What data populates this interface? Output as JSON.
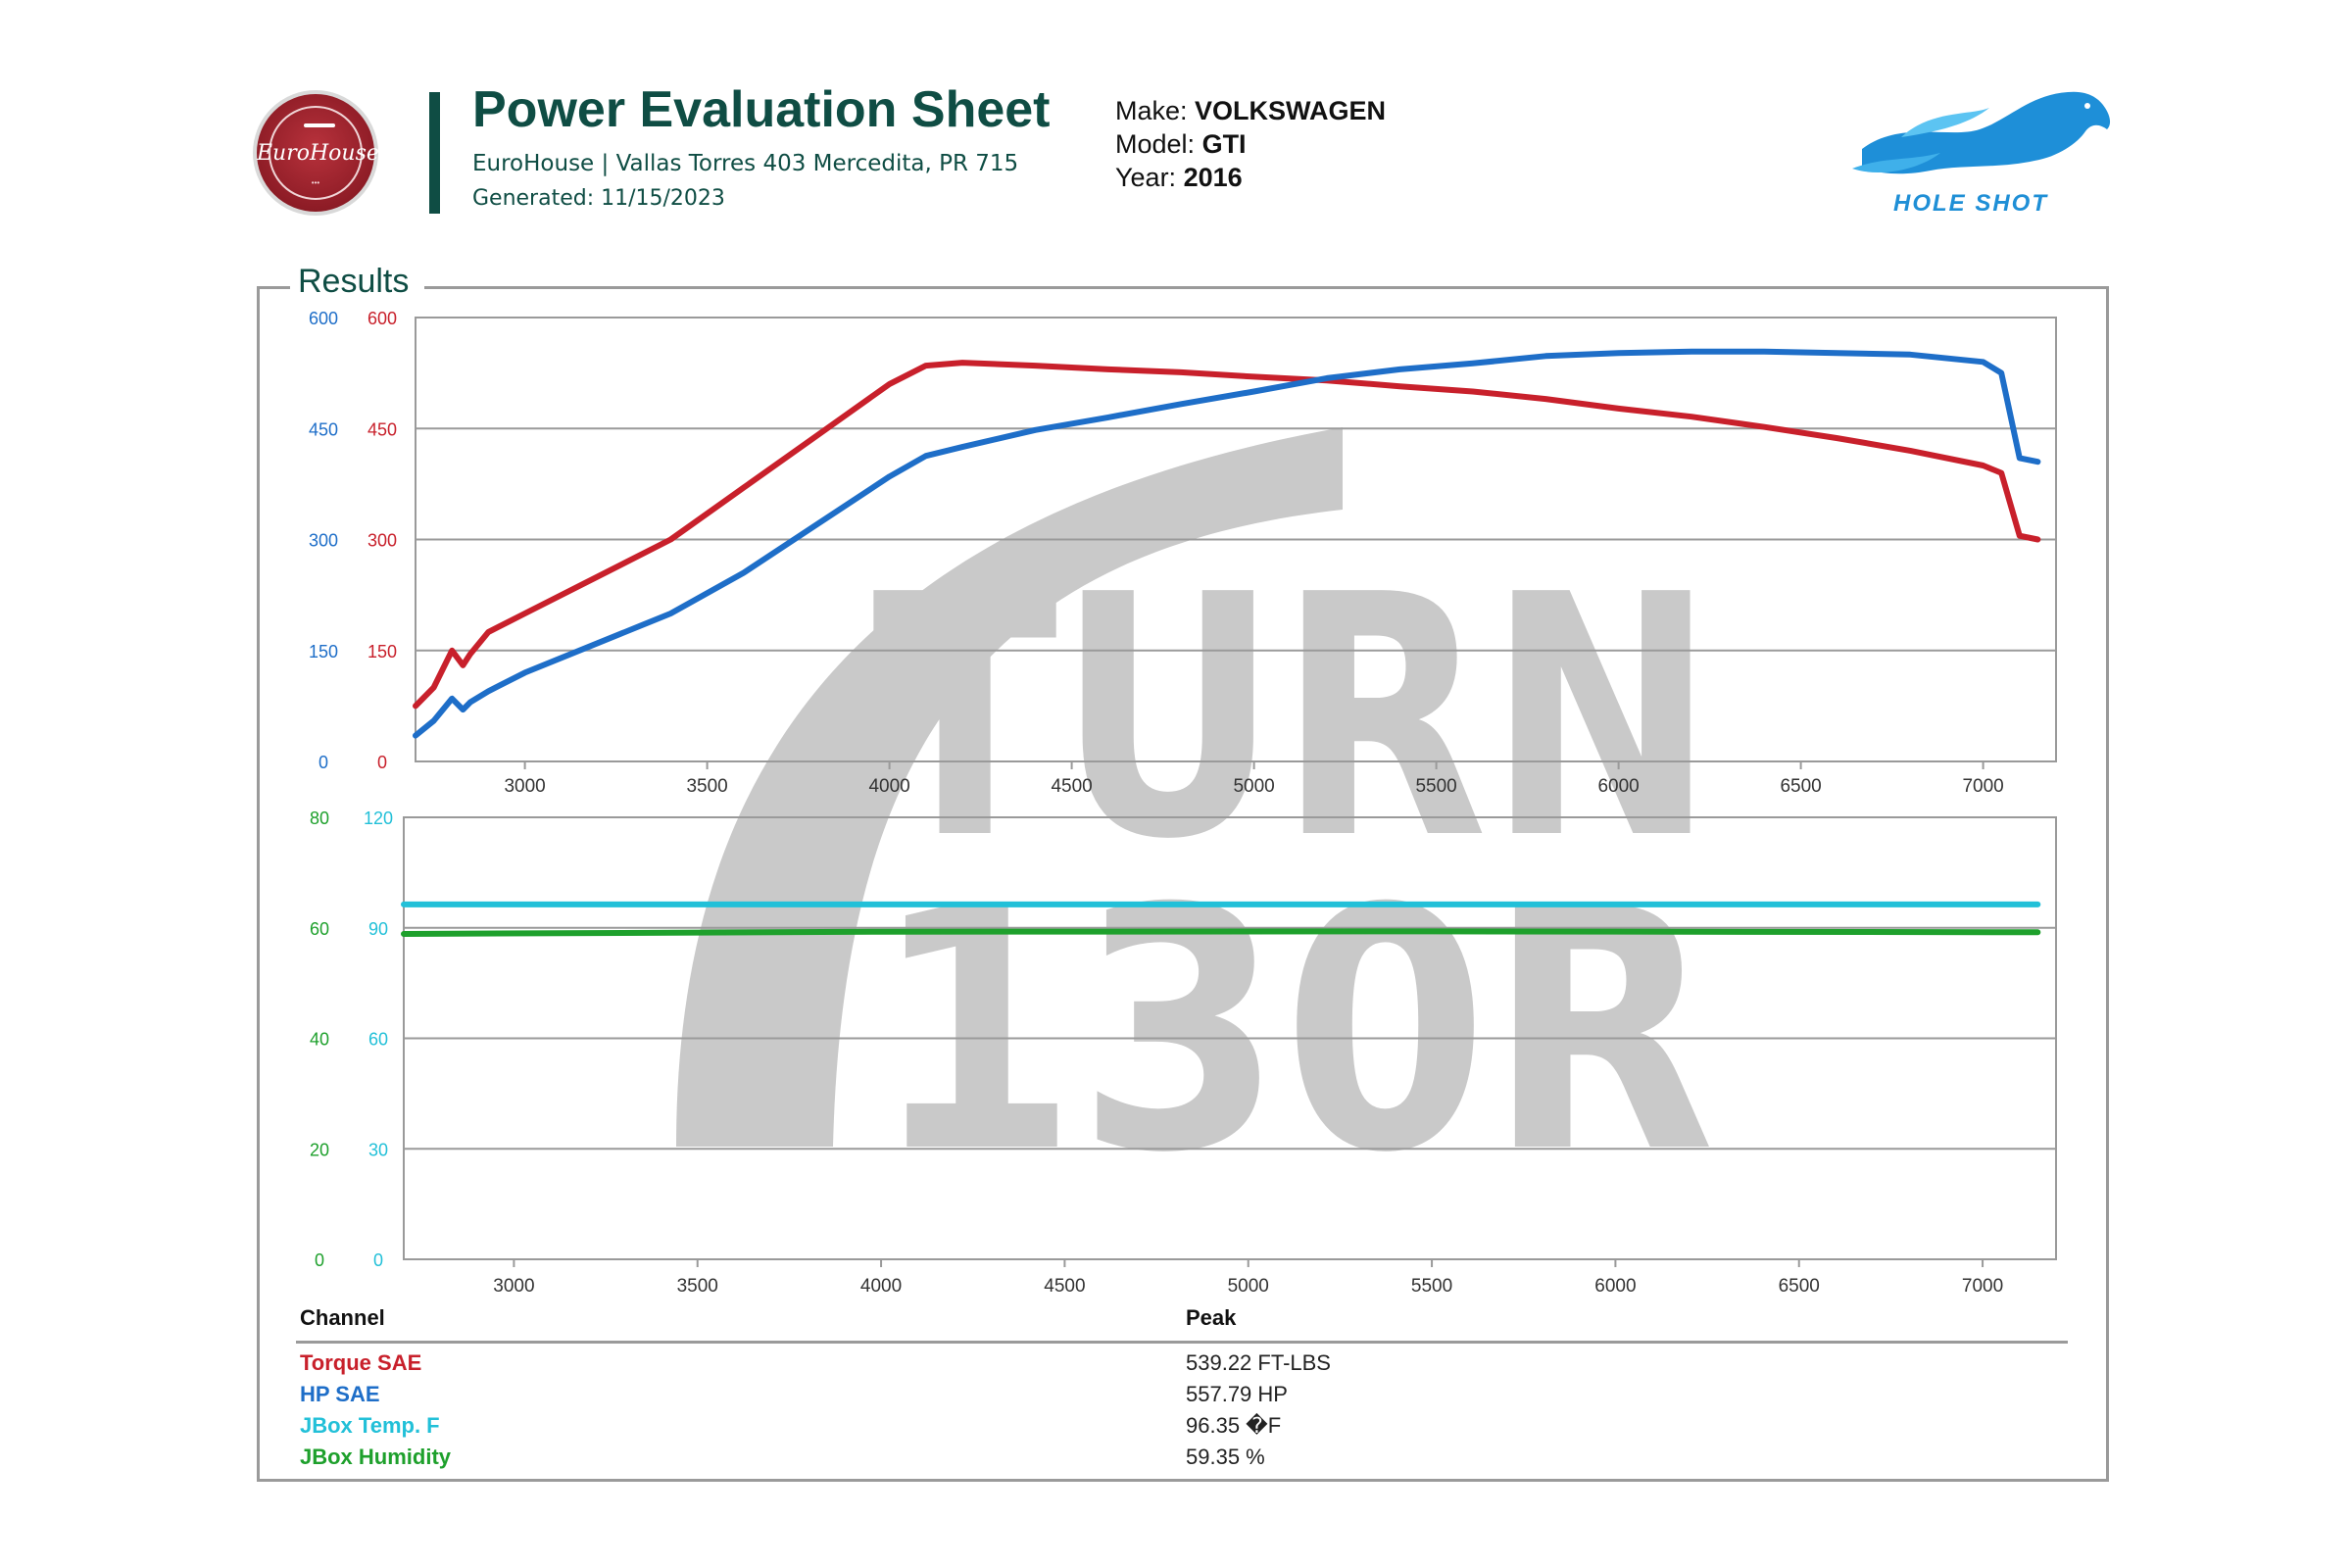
{
  "header": {
    "left_logo": {
      "text": "EuroHouse",
      "icon": "eurohouse-logo"
    },
    "title": "Power Evaluation Sheet",
    "subtitle": "EuroHouse | Vallas Torres 403 Mercedita, PR 715",
    "generated": "Generated: 11/15/2023",
    "vehicle": {
      "make_label": "Make:",
      "make": "VOLKSWAGEN",
      "model_label": "Model:",
      "model": "GTI",
      "year_label": "Year:",
      "year": "2016"
    },
    "right_logo": {
      "text": "HOLE SHOT",
      "icon": "horse-logo"
    }
  },
  "results": {
    "label": "Results"
  },
  "watermark": {
    "line1": "TURN",
    "line2": "130R",
    "icon": "turn130r-watermark"
  },
  "colors": {
    "torque": "#c8202b",
    "hp": "#1e6ec8",
    "temp": "#22c0d8",
    "humidity": "#1ea02c",
    "grid": "#9a9a9a"
  },
  "chart_data": [
    {
      "type": "line",
      "title": "",
      "xlim": [
        2700,
        7200
      ],
      "x_ticks": [
        "3000",
        "3500",
        "4000",
        "4500",
        "5000",
        "5500",
        "6000",
        "6500",
        "7000"
      ],
      "y_axes": [
        {
          "ticks": [
            "600",
            "450",
            "300",
            "150",
            "0"
          ],
          "color": "#1e6ec8",
          "side": "outer-left"
        },
        {
          "ticks": [
            "600",
            "450",
            "300",
            "150",
            "0"
          ],
          "color": "#c8202b",
          "side": "inner-left"
        }
      ],
      "ylim": [
        0,
        600
      ],
      "grid": true,
      "series": [
        {
          "name": "Torque SAE",
          "color": "#c8202b",
          "x": [
            2700,
            2750,
            2800,
            2830,
            2850,
            2900,
            3000,
            3200,
            3400,
            3600,
            3800,
            4000,
            4100,
            4200,
            4400,
            4600,
            4800,
            5000,
            5200,
            5400,
            5600,
            5800,
            6000,
            6200,
            6400,
            6600,
            6800,
            7000,
            7050,
            7100,
            7150
          ],
          "y": [
            75,
            100,
            150,
            130,
            145,
            175,
            200,
            250,
            300,
            370,
            440,
            510,
            535,
            539,
            535,
            530,
            526,
            520,
            515,
            507,
            500,
            490,
            477,
            466,
            452,
            437,
            420,
            400,
            390,
            305,
            300
          ]
        },
        {
          "name": "HP SAE",
          "color": "#1e6ec8",
          "x": [
            2700,
            2750,
            2800,
            2830,
            2850,
            2900,
            3000,
            3200,
            3400,
            3600,
            3800,
            4000,
            4100,
            4200,
            4400,
            4600,
            4800,
            5000,
            5200,
            5400,
            5600,
            5800,
            6000,
            6200,
            6400,
            6600,
            6800,
            7000,
            7050,
            7100,
            7150
          ],
          "y": [
            35,
            55,
            85,
            70,
            80,
            95,
            120,
            160,
            200,
            255,
            320,
            385,
            413,
            425,
            448,
            465,
            483,
            500,
            518,
            530,
            538,
            548,
            552,
            554,
            554,
            552,
            550,
            540,
            525,
            410,
            405
          ]
        }
      ]
    },
    {
      "type": "line",
      "title": "",
      "xlim": [
        2700,
        7200
      ],
      "x_ticks": [
        "3000",
        "3500",
        "4000",
        "4500",
        "5000",
        "5500",
        "6000",
        "6500",
        "7000"
      ],
      "y_axes": [
        {
          "ticks": [
            "80",
            "60",
            "40",
            "20",
            "0"
          ],
          "color": "#1ea02c",
          "side": "outer-left"
        },
        {
          "ticks": [
            "120",
            "90",
            "60",
            "30",
            "0"
          ],
          "color": "#22c0d8",
          "side": "inner-left"
        }
      ],
      "grid": true,
      "series": [
        {
          "name": "JBox Temp. F",
          "color": "#22c0d8",
          "axis": 1,
          "x": [
            2700,
            7150
          ],
          "y": [
            96.35,
            96.35
          ]
        },
        {
          "name": "JBox Humidity",
          "color": "#1ea02c",
          "axis": 0,
          "x": [
            2700,
            4000,
            5500,
            7150
          ],
          "y": [
            58.9,
            59.3,
            59.35,
            59.2
          ]
        }
      ]
    }
  ],
  "table": {
    "headers": {
      "channel": "Channel",
      "peak": "Peak"
    },
    "rows": [
      {
        "channel": "Torque SAE",
        "peak": "539.22 FT-LBS",
        "color": "#c8202b"
      },
      {
        "channel": "HP SAE",
        "peak": "557.79 HP",
        "color": "#1e6ec8"
      },
      {
        "channel": "JBox Temp. F",
        "peak": "96.35 �F",
        "color": "#22c0d8"
      },
      {
        "channel": "JBox Humidity",
        "peak": "59.35 %",
        "color": "#1ea02c"
      }
    ]
  }
}
